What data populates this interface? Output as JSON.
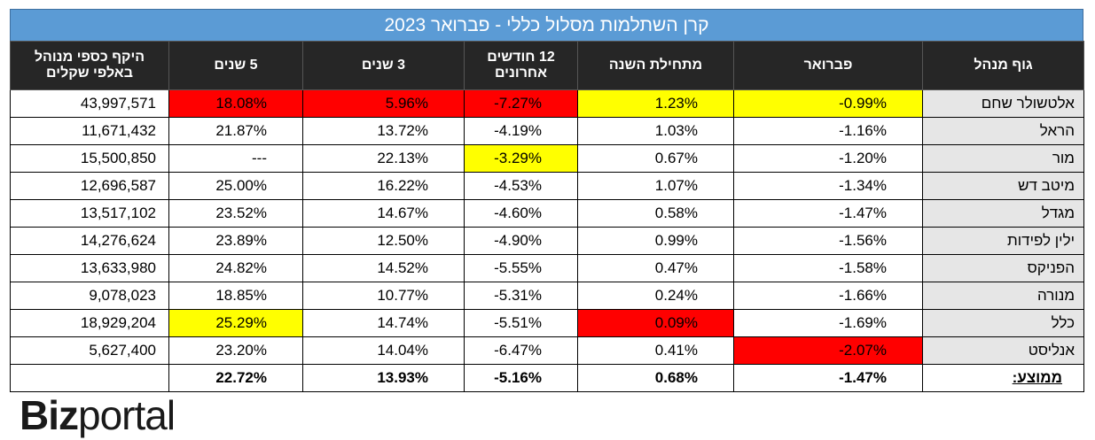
{
  "title": "קרן השתלמות מסלול כללי - פברואר 2023",
  "columns": {
    "manager": "גוף מנהל",
    "february": "פברואר",
    "ytd": "מתחילת השנה",
    "m12_line1": "12 חודשים",
    "m12_line2": "אחרונים",
    "y3": "3 שנים",
    "y5": "5 שנים",
    "aum_line1": "היקף כספי מנוהל",
    "aum_line2": "באלפי שקלים"
  },
  "rows": [
    {
      "name": "אלטשולר שחם",
      "feb": "-0.99%",
      "ytd": "1.23%",
      "m12": "-7.27%",
      "y3": "5.96%",
      "y5": "18.08%",
      "aum": "43,997,571"
    },
    {
      "name": "הראל",
      "feb": "-1.16%",
      "ytd": "1.03%",
      "m12": "-4.19%",
      "y3": "13.72%",
      "y5": "21.87%",
      "aum": "11,671,432"
    },
    {
      "name": "מור",
      "feb": "-1.20%",
      "ytd": "0.67%",
      "m12": "-3.29%",
      "y3": "22.13%",
      "y5": "---",
      "aum": "15,500,850"
    },
    {
      "name": "מיטב דש",
      "feb": "-1.34%",
      "ytd": "1.07%",
      "m12": "-4.53%",
      "y3": "16.22%",
      "y5": "25.00%",
      "aum": "12,696,587"
    },
    {
      "name": "מגדל",
      "feb": "-1.47%",
      "ytd": "0.58%",
      "m12": "-4.60%",
      "y3": "14.67%",
      "y5": "23.52%",
      "aum": "13,517,102"
    },
    {
      "name": "ילין לפידות",
      "feb": "-1.56%",
      "ytd": "0.99%",
      "m12": "-4.90%",
      "y3": "12.50%",
      "y5": "23.89%",
      "aum": "14,276,624"
    },
    {
      "name": "הפניקס",
      "feb": "-1.58%",
      "ytd": "0.47%",
      "m12": "-5.55%",
      "y3": "14.52%",
      "y5": "24.82%",
      "aum": "13,633,980"
    },
    {
      "name": "מנורה",
      "feb": "-1.66%",
      "ytd": "0.24%",
      "m12": "-5.31%",
      "y3": "10.77%",
      "y5": "18.85%",
      "aum": "9,078,023"
    },
    {
      "name": "כלל",
      "feb": "-1.69%",
      "ytd": "0.09%",
      "m12": "-5.51%",
      "y3": "14.74%",
      "y5": "25.29%",
      "aum": "18,929,204"
    },
    {
      "name": "אנליסט",
      "feb": "-2.07%",
      "ytd": "0.41%",
      "m12": "-6.47%",
      "y3": "14.04%",
      "y5": "23.20%",
      "aum": "5,627,400"
    }
  ],
  "average": {
    "label": "ממוצע:",
    "feb": "-1.47%",
    "ytd": "0.68%",
    "m12": "-5.16%",
    "y3": "13.93%",
    "y5": "22.72%",
    "aum": ""
  },
  "highlight_colors": {
    "best": "#ffff00",
    "worst": "#ff0000"
  },
  "logo": {
    "part1": "Biz",
    "part2": "portal"
  }
}
